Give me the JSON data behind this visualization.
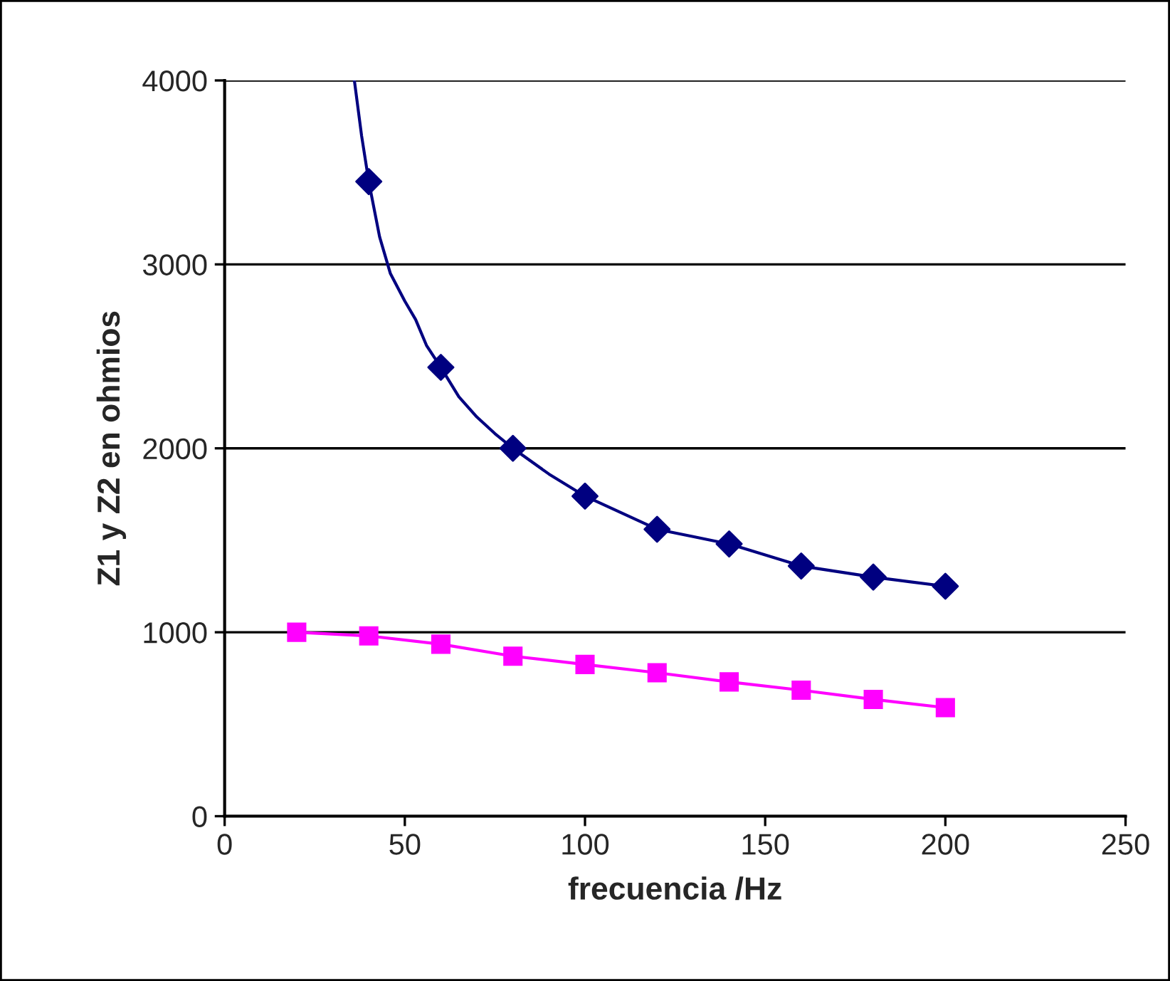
{
  "chart_data": {
    "type": "line",
    "xlabel": "frecuencia /Hz",
    "ylabel": "Z1 y Z2 en ohmios",
    "xlim": [
      0,
      250
    ],
    "xticks": [
      0,
      50,
      100,
      150,
      200,
      250
    ],
    "ylim": [
      0,
      4000
    ],
    "yticks": [
      0,
      1000,
      2000,
      3000,
      4000
    ],
    "grid": "y",
    "legend": false,
    "series": [
      {
        "color": "#000080",
        "marker": "none",
        "x": [
          36,
          38,
          40,
          43,
          46,
          50,
          53,
          56,
          60,
          65,
          70,
          75,
          80,
          90,
          100,
          110,
          120,
          130,
          140,
          150,
          160,
          170,
          180,
          190,
          200
        ],
        "values": [
          4000,
          3700,
          3450,
          3150,
          2950,
          2800,
          2700,
          2560,
          2440,
          2280,
          2170,
          2080,
          2000,
          1860,
          1740,
          1650,
          1560,
          1520,
          1480,
          1420,
          1360,
          1330,
          1300,
          1275,
          1250
        ]
      },
      {
        "type": "scatter",
        "color": "#000080",
        "marker": "diamond",
        "x": [
          40,
          60,
          80,
          100,
          120,
          140,
          160,
          180,
          200
        ],
        "values": [
          3450,
          2440,
          2000,
          1740,
          1560,
          1480,
          1360,
          1300,
          1250
        ]
      },
      {
        "color": "#ff00ff",
        "marker": "square",
        "x": [
          20,
          40,
          60,
          80,
          100,
          120,
          140,
          160,
          180,
          200
        ],
        "values": [
          1000,
          980,
          935,
          870,
          825,
          780,
          730,
          685,
          635,
          590
        ]
      }
    ]
  }
}
